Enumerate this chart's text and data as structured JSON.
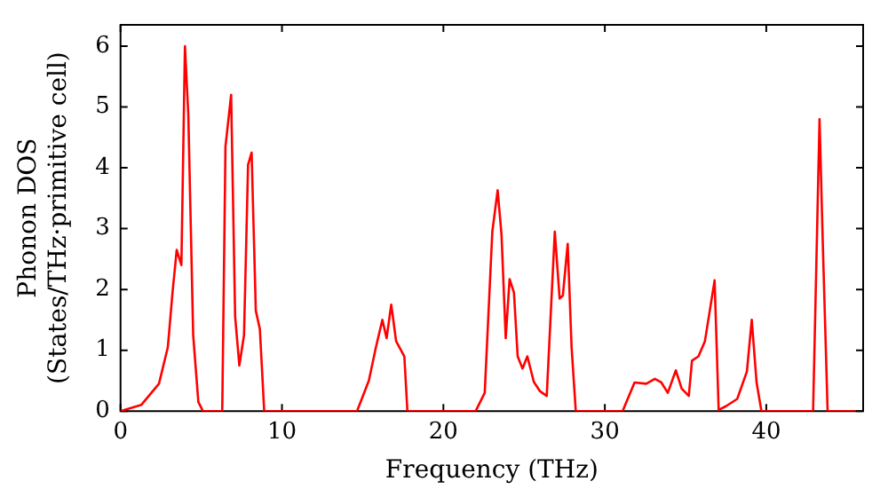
{
  "chart_data": {
    "type": "line",
    "xlabel": "Frequency (THz)",
    "ylabel": "Phonon DOS\n(States/THz·primitive cell)",
    "x": [
      0,
      1.28,
      2.38,
      2.93,
      3.22,
      3.48,
      3.77,
      3.99,
      4.2,
      4.5,
      4.82,
      5.1,
      6.3,
      6.5,
      6.85,
      7.1,
      7.36,
      7.65,
      7.9,
      8.12,
      8.38,
      8.63,
      8.9,
      14.65,
      15.38,
      15.82,
      16.22,
      16.48,
      16.77,
      17.07,
      17.58,
      17.77,
      22.0,
      22.56,
      23.03,
      23.36,
      23.6,
      23.86,
      24.1,
      24.37,
      24.6,
      24.9,
      25.2,
      25.6,
      25.97,
      26.4,
      26.9,
      27.2,
      27.4,
      27.7,
      27.94,
      28.2,
      31.1,
      31.84,
      32.57,
      33.1,
      33.5,
      33.9,
      34.4,
      34.76,
      35.2,
      35.4,
      35.8,
      36.2,
      36.8,
      37.05,
      37.5,
      38.2,
      38.8,
      39.1,
      39.4,
      39.7,
      42.9,
      43.3,
      43.5,
      43.8,
      45.5
    ],
    "series": [
      {
        "color": "#ff0000",
        "values": [
          0,
          0.1,
          0.45,
          1.05,
          1.95,
          2.65,
          2.4,
          6.0,
          4.86,
          1.25,
          0.15,
          0,
          0,
          4.35,
          5.2,
          1.55,
          0.75,
          1.25,
          4.05,
          4.25,
          1.65,
          1.35,
          0,
          0,
          0.5,
          1.05,
          1.5,
          1.2,
          1.75,
          1.15,
          0.9,
          0,
          0,
          0.3,
          2.95,
          3.63,
          2.9,
          1.2,
          2.17,
          1.95,
          0.9,
          0.7,
          0.9,
          0.48,
          0.33,
          0.25,
          2.95,
          1.85,
          1.9,
          2.75,
          1.05,
          0,
          0,
          0.47,
          0.45,
          0.53,
          0.47,
          0.3,
          0.67,
          0.37,
          0.25,
          0.83,
          0.9,
          1.15,
          2.15,
          0.02,
          0.08,
          0.2,
          0.65,
          1.5,
          0.47,
          0,
          0,
          4.8,
          2.77,
          0,
          0
        ]
      }
    ],
    "xlim": [
      0,
      46
    ],
    "ylim": [
      0,
      6.35
    ],
    "xticks": [
      0,
      10,
      20,
      30,
      40
    ],
    "yticks": [
      0,
      1,
      2,
      3,
      4,
      5,
      6
    ],
    "grid": false,
    "legend": false,
    "marker": "none",
    "line_style": "solid"
  }
}
